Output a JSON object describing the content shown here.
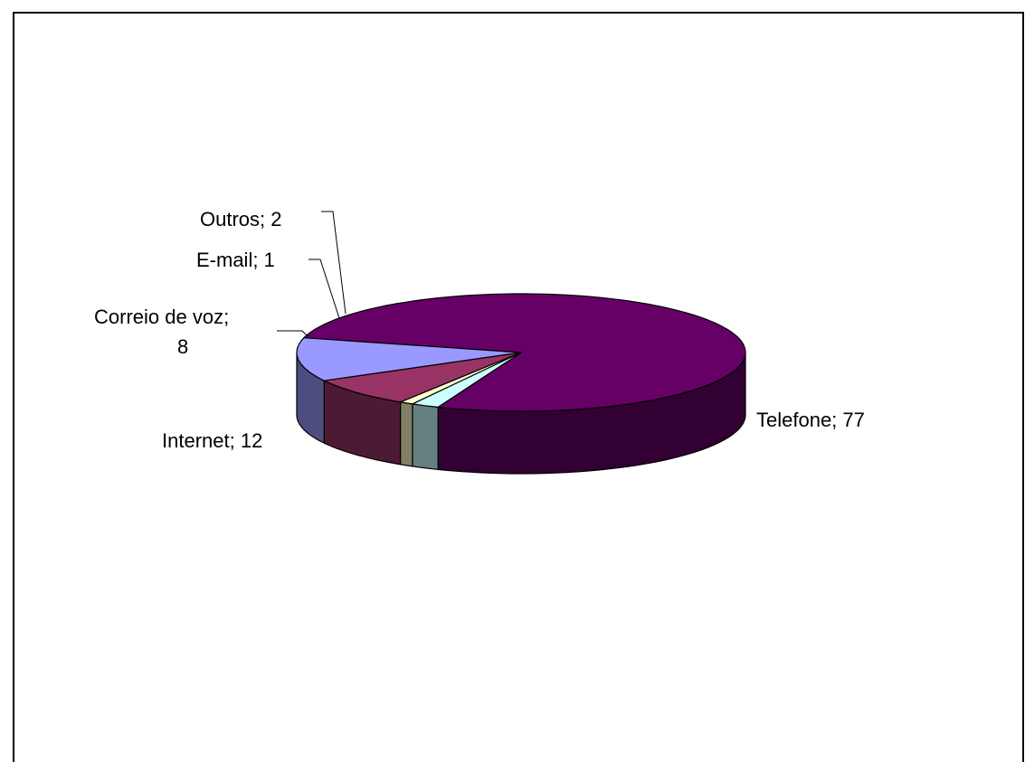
{
  "chart_data": {
    "type": "pie",
    "style": "3d",
    "categories": [
      "Telefone",
      "Internet",
      "Correio de voz",
      "E-mail",
      "Outros"
    ],
    "values": [
      77,
      12,
      8,
      1,
      2
    ],
    "labels": [
      {
        "line1": "Telefone; 77",
        "line2": ""
      },
      {
        "line1": "Internet; 12",
        "line2": ""
      },
      {
        "line1": "Correio de voz;",
        "line2": "8"
      },
      {
        "line1": "E-mail; 1",
        "line2": ""
      },
      {
        "line1": "Outros; 2",
        "line2": ""
      }
    ],
    "colors": {
      "top": [
        "#660066",
        "#9999ff",
        "#993366",
        "#ffffcc",
        "#ccffff"
      ],
      "side": [
        "#330033",
        "#4d4d80",
        "#4d1a33",
        "#808066",
        "#668080"
      ]
    },
    "title": "",
    "legend": "none"
  }
}
